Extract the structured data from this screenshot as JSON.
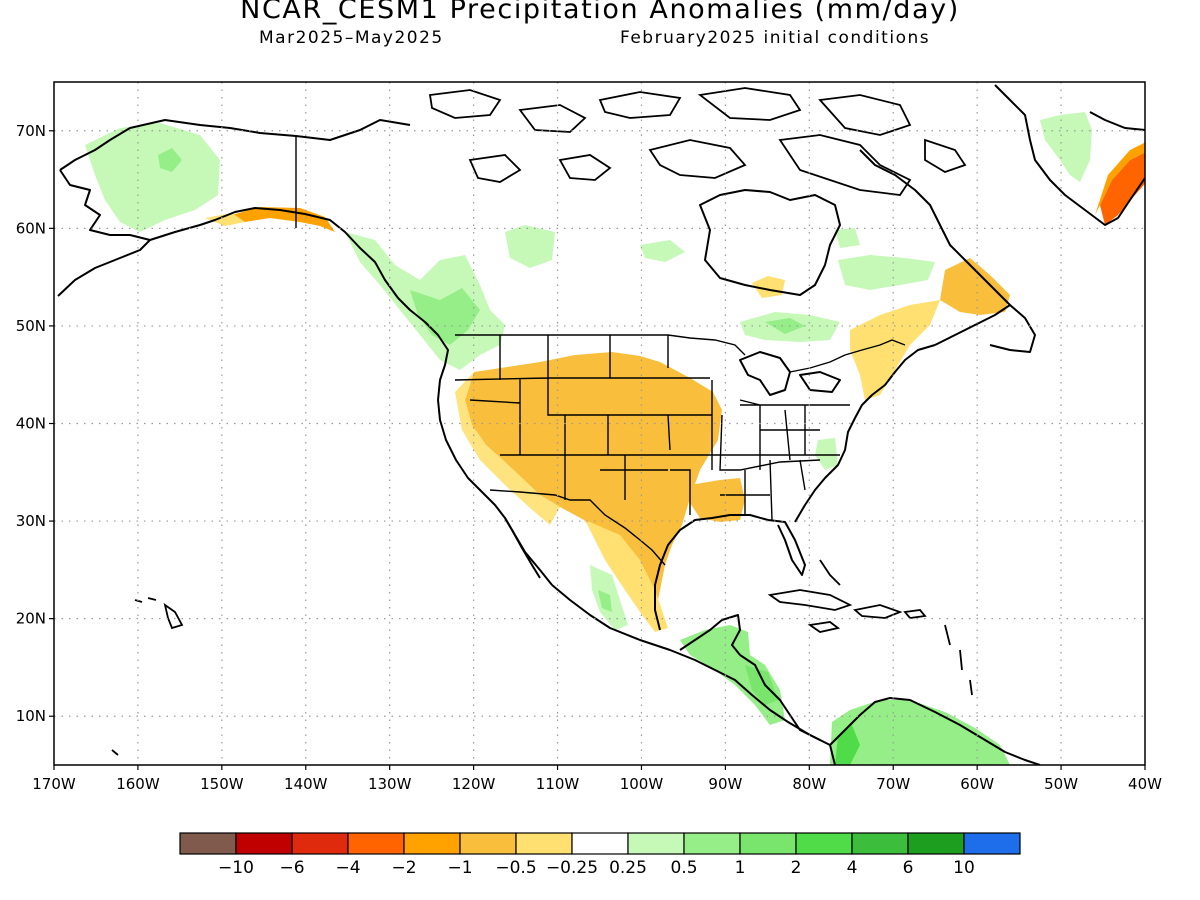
{
  "title": "NCAR_CESM1 Precipitation Anomalies (mm/day)",
  "subtitle_left": "Mar2025–May2025",
  "subtitle_right": "February2025 initial conditions",
  "map": {
    "lon_min": -170,
    "lon_max": -40,
    "lat_min": 5,
    "lat_max": 75,
    "lon_ticks": [
      {
        "v": -170,
        "label": "170W"
      },
      {
        "v": -160,
        "label": "160W"
      },
      {
        "v": -150,
        "label": "150W"
      },
      {
        "v": -140,
        "label": "140W"
      },
      {
        "v": -130,
        "label": "130W"
      },
      {
        "v": -120,
        "label": "120W"
      },
      {
        "v": -110,
        "label": "110W"
      },
      {
        "v": -100,
        "label": "100W"
      },
      {
        "v": -90,
        "label": "90W"
      },
      {
        "v": -80,
        "label": "80W"
      },
      {
        "v": -70,
        "label": "70W"
      },
      {
        "v": -60,
        "label": "60W"
      },
      {
        "v": -50,
        "label": "50W"
      },
      {
        "v": -40,
        "label": "40W"
      }
    ],
    "lat_ticks": [
      {
        "v": 10,
        "label": "10N"
      },
      {
        "v": 20,
        "label": "20N"
      },
      {
        "v": 30,
        "label": "30N"
      },
      {
        "v": 40,
        "label": "40N"
      },
      {
        "v": 50,
        "label": "50N"
      },
      {
        "v": 60,
        "label": "60N"
      },
      {
        "v": 70,
        "label": "70N"
      }
    ],
    "grid": "dotted"
  },
  "legend": {
    "colors": [
      "#7f5a4d",
      "#c00000",
      "#e02a0d",
      "#ff6400",
      "#ffa200",
      "#f9bf3c",
      "#ffe070",
      "#ffffff",
      "#c6f9b8",
      "#95ee87",
      "#7ae56d",
      "#50dc49",
      "#3cbd3c",
      "#1e9e1e",
      "#1e6eeb"
    ],
    "labels": [
      "−10",
      "−6",
      "−4",
      "−2",
      "−1",
      "−0.5",
      "−0.25",
      "0.25",
      "0.5",
      "1",
      "2",
      "4",
      "6",
      "10"
    ]
  }
}
